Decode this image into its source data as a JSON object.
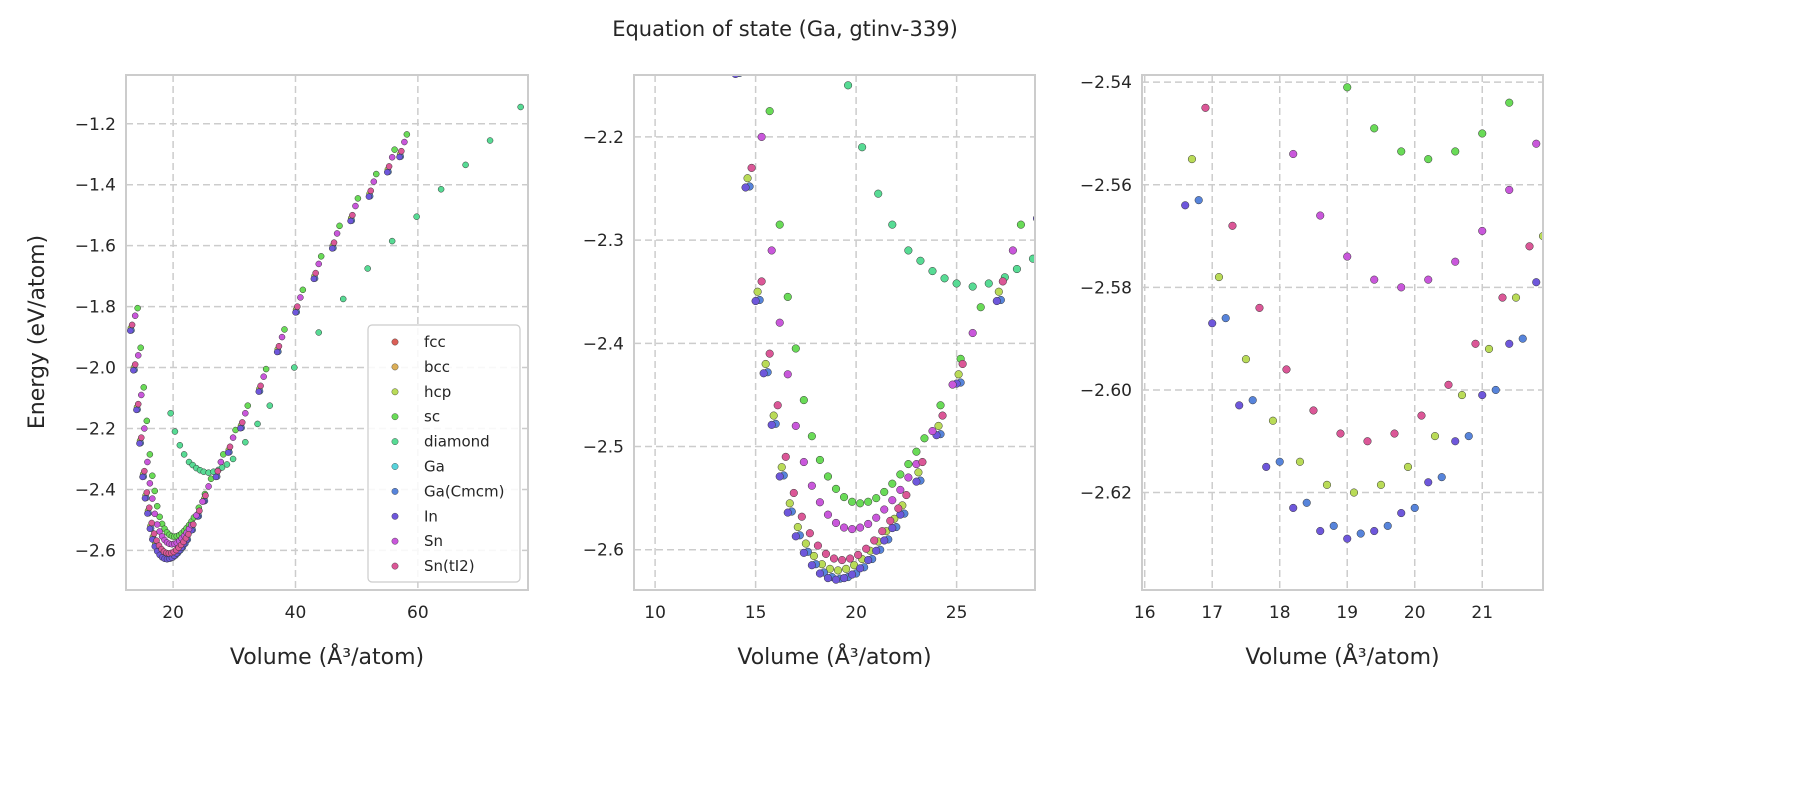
{
  "title": "Equation of state (Ga, gtinv-339)",
  "chart_data": {
    "type": "scatter",
    "title": "Equation of state (Ga, gtinv-339)",
    "ylabel": "Energy (eV/atom)",
    "xlabel": "Volume (Å³/atom)",
    "grid": true,
    "legend_placement": "lower-right (first panel)",
    "panels": [
      {
        "xlim": [
          12.3,
          78
        ],
        "ylim": [
          -2.73,
          -1.04
        ],
        "xticks": [
          20,
          40,
          60
        ],
        "yticks": [
          -2.6,
          -2.4,
          -2.2,
          -2.0,
          -1.8,
          -1.6,
          -1.4,
          -1.2
        ],
        "ytick_labels": [
          "−2.6",
          "−2.4",
          "−2.2",
          "−2.0",
          "−1.8",
          "−1.6",
          "−1.4",
          "−1.2"
        ],
        "marker": "small",
        "legend": true
      },
      {
        "xlim": [
          8.95,
          28.9
        ],
        "ylim": [
          -2.639,
          -2.14
        ],
        "xticks": [
          10,
          15,
          20,
          25
        ],
        "yticks": [
          -2.6,
          -2.5,
          -2.4,
          -2.3,
          -2.2
        ],
        "ytick_labels": [
          "−2.6",
          "−2.5",
          "−2.4",
          "−2.3",
          "−2.2"
        ],
        "marker": "large",
        "legend": false
      },
      {
        "xlim": [
          15.96,
          21.9
        ],
        "ylim": [
          -2.639,
          -2.5386
        ],
        "xticks": [
          16,
          17,
          18,
          19,
          20,
          21
        ],
        "yticks": [
          -2.62,
          -2.6,
          -2.58,
          -2.56,
          -2.54
        ],
        "ytick_labels": [
          "−2.62",
          "−2.60",
          "−2.58",
          "−2.56",
          "−2.54"
        ],
        "marker": "large",
        "legend": false
      }
    ],
    "series": [
      {
        "name": "fcc",
        "color": "#db5f57",
        "points": []
      },
      {
        "name": "bcc",
        "color": "#dbae57",
        "points": []
      },
      {
        "name": "hcp",
        "color": "#b9db57",
        "points": [
          [
            13.1,
            -1.87
          ],
          [
            13.6,
            -2.0
          ],
          [
            14.1,
            -2.13
          ],
          [
            14.6,
            -2.24
          ],
          [
            15.1,
            -2.35
          ],
          [
            15.5,
            -2.42
          ],
          [
            15.9,
            -2.47
          ],
          [
            16.3,
            -2.52
          ],
          [
            16.7,
            -2.555
          ],
          [
            17.1,
            -2.578
          ],
          [
            17.5,
            -2.594
          ],
          [
            17.9,
            -2.606
          ],
          [
            18.3,
            -2.614
          ],
          [
            18.7,
            -2.6185
          ],
          [
            19.1,
            -2.62
          ],
          [
            19.5,
            -2.6185
          ],
          [
            19.9,
            -2.615
          ],
          [
            20.3,
            -2.609
          ],
          [
            20.7,
            -2.601
          ],
          [
            21.1,
            -2.592
          ],
          [
            21.5,
            -2.582
          ],
          [
            21.9,
            -2.57
          ],
          [
            22.3,
            -2.557
          ],
          [
            23.1,
            -2.525
          ],
          [
            24.1,
            -2.48
          ],
          [
            25.1,
            -2.43
          ],
          [
            27.1,
            -2.35
          ],
          [
            29.1,
            -2.27
          ],
          [
            31.1,
            -2.19
          ],
          [
            34.1,
            -2.07
          ],
          [
            37.1,
            -1.94
          ],
          [
            40.1,
            -1.81
          ],
          [
            43.1,
            -1.7
          ],
          [
            46.1,
            -1.6
          ],
          [
            49.1,
            -1.51
          ],
          [
            52.1,
            -1.43
          ],
          [
            55.1,
            -1.35
          ],
          [
            57.1,
            -1.3
          ]
        ]
      },
      {
        "name": "sc",
        "color": "#69db57",
        "points": [
          [
            14.2,
            -1.805
          ],
          [
            14.7,
            -1.935
          ],
          [
            15.2,
            -2.065
          ],
          [
            15.7,
            -2.175
          ],
          [
            16.2,
            -2.285
          ],
          [
            16.6,
            -2.355
          ],
          [
            17,
            -2.405
          ],
          [
            17.4,
            -2.455
          ],
          [
            17.8,
            -2.49
          ],
          [
            18.2,
            -2.513
          ],
          [
            18.6,
            -2.529
          ],
          [
            19,
            -2.541
          ],
          [
            19.4,
            -2.549
          ],
          [
            19.8,
            -2.5535
          ],
          [
            20.2,
            -2.555
          ],
          [
            20.6,
            -2.5535
          ],
          [
            21,
            -2.55
          ],
          [
            21.4,
            -2.544
          ],
          [
            21.8,
            -2.536
          ],
          [
            22.2,
            -2.527
          ],
          [
            22.6,
            -2.517
          ],
          [
            23,
            -2.505
          ],
          [
            23.4,
            -2.492
          ],
          [
            24.2,
            -2.46
          ],
          [
            25.2,
            -2.415
          ],
          [
            26.2,
            -2.365
          ],
          [
            28.2,
            -2.285
          ],
          [
            30.2,
            -2.205
          ],
          [
            32.2,
            -2.125
          ],
          [
            35.2,
            -2.005
          ],
          [
            38.2,
            -1.875
          ],
          [
            41.2,
            -1.745
          ],
          [
            44.2,
            -1.635
          ],
          [
            47.2,
            -1.535
          ],
          [
            50.2,
            -1.445
          ],
          [
            53.2,
            -1.365
          ],
          [
            56.2,
            -1.285
          ],
          [
            58.2,
            -1.235
          ]
        ]
      },
      {
        "name": "diamond",
        "color": "#57db94",
        "points": [
          [
            19.6,
            -2.15
          ],
          [
            20.3,
            -2.21
          ],
          [
            21.1,
            -2.255
          ],
          [
            21.8,
            -2.285
          ],
          [
            22.6,
            -2.31
          ],
          [
            23.2,
            -2.32
          ],
          [
            23.8,
            -2.33
          ],
          [
            24.4,
            -2.337
          ],
          [
            25,
            -2.342
          ],
          [
            25.8,
            -2.345
          ],
          [
            26.6,
            -2.342
          ],
          [
            27.4,
            -2.336
          ],
          [
            28,
            -2.328
          ],
          [
            28.8,
            -2.318
          ],
          [
            29.8,
            -2.3
          ],
          [
            31.8,
            -2.245
          ],
          [
            33.8,
            -2.185
          ],
          [
            35.8,
            -2.125
          ],
          [
            39.8,
            -2.0
          ],
          [
            43.8,
            -1.885
          ],
          [
            47.8,
            -1.775
          ],
          [
            51.8,
            -1.675
          ],
          [
            55.8,
            -1.585
          ],
          [
            59.8,
            -1.505
          ],
          [
            63.8,
            -1.415
          ],
          [
            67.8,
            -1.335
          ],
          [
            71.8,
            -1.255
          ],
          [
            76.8,
            -1.145
          ]
        ]
      },
      {
        "name": "Ga",
        "color": "#57d3db",
        "points": []
      },
      {
        "name": "Ga(Cmcm)",
        "color": "#5784db",
        "points": [
          [
            13.2,
            -1.878
          ],
          [
            13.7,
            -2.008
          ],
          [
            14.2,
            -2.138
          ],
          [
            14.7,
            -2.248
          ],
          [
            15.2,
            -2.358
          ],
          [
            15.6,
            -2.428
          ],
          [
            16,
            -2.478
          ],
          [
            16.4,
            -2.528
          ],
          [
            16.8,
            -2.563
          ],
          [
            17.2,
            -2.586
          ],
          [
            17.6,
            -2.602
          ],
          [
            18,
            -2.614
          ],
          [
            18.4,
            -2.622
          ],
          [
            18.8,
            -2.6265
          ],
          [
            19.2,
            -2.628
          ],
          [
            19.6,
            -2.6265
          ],
          [
            20,
            -2.623
          ],
          [
            20.4,
            -2.617
          ],
          [
            20.8,
            -2.609
          ],
          [
            21.2,
            -2.6
          ],
          [
            21.6,
            -2.59
          ],
          [
            22,
            -2.578
          ],
          [
            22.4,
            -2.565
          ],
          [
            23.2,
            -2.533
          ],
          [
            24.2,
            -2.488
          ],
          [
            25.2,
            -2.438
          ],
          [
            27.2,
            -2.358
          ],
          [
            29.2,
            -2.278
          ],
          [
            31.2,
            -2.198
          ],
          [
            34.2,
            -2.078
          ],
          [
            37.2,
            -1.948
          ],
          [
            40.2,
            -1.818
          ],
          [
            43.2,
            -1.708
          ],
          [
            46.2,
            -1.608
          ],
          [
            49.2,
            -1.518
          ],
          [
            52.2,
            -1.438
          ],
          [
            55.2,
            -1.358
          ],
          [
            57.2,
            -1.308
          ]
        ]
      },
      {
        "name": "In",
        "color": "#6e57db",
        "points": [
          [
            13,
            -1.879
          ],
          [
            13.5,
            -2.009
          ],
          [
            14,
            -2.139
          ],
          [
            14.5,
            -2.249
          ],
          [
            15,
            -2.359
          ],
          [
            15.4,
            -2.429
          ],
          [
            15.8,
            -2.479
          ],
          [
            16.2,
            -2.529
          ],
          [
            16.6,
            -2.564
          ],
          [
            17,
            -2.587
          ],
          [
            17.4,
            -2.603
          ],
          [
            17.8,
            -2.615
          ],
          [
            18.2,
            -2.623
          ],
          [
            18.6,
            -2.6275
          ],
          [
            19,
            -2.629
          ],
          [
            19.4,
            -2.6275
          ],
          [
            19.8,
            -2.624
          ],
          [
            20.2,
            -2.618
          ],
          [
            20.6,
            -2.61
          ],
          [
            21,
            -2.601
          ],
          [
            21.4,
            -2.591
          ],
          [
            21.8,
            -2.579
          ],
          [
            22.2,
            -2.566
          ],
          [
            23,
            -2.534
          ],
          [
            24,
            -2.489
          ],
          [
            25,
            -2.439
          ],
          [
            27,
            -2.359
          ],
          [
            29,
            -2.279
          ],
          [
            31,
            -2.199
          ],
          [
            34,
            -2.079
          ],
          [
            37,
            -1.949
          ],
          [
            40,
            -1.819
          ],
          [
            43,
            -1.709
          ],
          [
            46,
            -1.609
          ],
          [
            49,
            -1.519
          ],
          [
            52,
            -1.439
          ],
          [
            55,
            -1.359
          ],
          [
            57,
            -1.309
          ]
        ]
      },
      {
        "name": "Sn",
        "color": "#c957db",
        "points": [
          [
            13.8,
            -1.83
          ],
          [
            14.3,
            -1.96
          ],
          [
            14.8,
            -2.09
          ],
          [
            15.3,
            -2.2
          ],
          [
            15.8,
            -2.31
          ],
          [
            16.2,
            -2.38
          ],
          [
            16.6,
            -2.43
          ],
          [
            17,
            -2.48
          ],
          [
            17.4,
            -2.515
          ],
          [
            17.8,
            -2.538
          ],
          [
            18.2,
            -2.554
          ],
          [
            18.6,
            -2.566
          ],
          [
            19,
            -2.574
          ],
          [
            19.4,
            -2.5785
          ],
          [
            19.8,
            -2.58
          ],
          [
            20.2,
            -2.5785
          ],
          [
            20.6,
            -2.575
          ],
          [
            21,
            -2.569
          ],
          [
            21.4,
            -2.561
          ],
          [
            21.8,
            -2.552
          ],
          [
            22.2,
            -2.542
          ],
          [
            22.6,
            -2.53
          ],
          [
            23,
            -2.517
          ],
          [
            23.8,
            -2.485
          ],
          [
            24.8,
            -2.44
          ],
          [
            25.8,
            -2.39
          ],
          [
            27.8,
            -2.31
          ],
          [
            29.8,
            -2.23
          ],
          [
            31.8,
            -2.15
          ],
          [
            34.8,
            -2.03
          ],
          [
            37.8,
            -1.9
          ],
          [
            40.8,
            -1.77
          ],
          [
            43.8,
            -1.66
          ],
          [
            46.8,
            -1.56
          ],
          [
            49.8,
            -1.47
          ],
          [
            52.8,
            -1.39
          ],
          [
            55.8,
            -1.31
          ],
          [
            57.8,
            -1.26
          ]
        ]
      },
      {
        "name": "Sn(tI2)",
        "color": "#db5797",
        "points": [
          [
            13.3,
            -1.86
          ],
          [
            13.8,
            -1.99
          ],
          [
            14.3,
            -2.12
          ],
          [
            14.8,
            -2.23
          ],
          [
            15.3,
            -2.34
          ],
          [
            15.7,
            -2.41
          ],
          [
            16.1,
            -2.46
          ],
          [
            16.5,
            -2.51
          ],
          [
            16.9,
            -2.545
          ],
          [
            17.3,
            -2.568
          ],
          [
            17.7,
            -2.584
          ],
          [
            18.1,
            -2.596
          ],
          [
            18.5,
            -2.604
          ],
          [
            18.9,
            -2.6085
          ],
          [
            19.3,
            -2.61
          ],
          [
            19.7,
            -2.6085
          ],
          [
            20.1,
            -2.605
          ],
          [
            20.5,
            -2.599
          ],
          [
            20.9,
            -2.591
          ],
          [
            21.3,
            -2.582
          ],
          [
            21.7,
            -2.572
          ],
          [
            22.1,
            -2.56
          ],
          [
            22.5,
            -2.547
          ],
          [
            23.3,
            -2.515
          ],
          [
            24.3,
            -2.47
          ],
          [
            25.3,
            -2.42
          ],
          [
            27.3,
            -2.34
          ],
          [
            29.3,
            -2.26
          ],
          [
            31.3,
            -2.18
          ],
          [
            34.3,
            -2.06
          ],
          [
            37.3,
            -1.93
          ],
          [
            40.3,
            -1.8
          ],
          [
            43.3,
            -1.69
          ],
          [
            46.3,
            -1.59
          ],
          [
            49.3,
            -1.5
          ],
          [
            52.3,
            -1.42
          ],
          [
            55.3,
            -1.34
          ],
          [
            57.3,
            -1.29
          ]
        ]
      }
    ]
  }
}
